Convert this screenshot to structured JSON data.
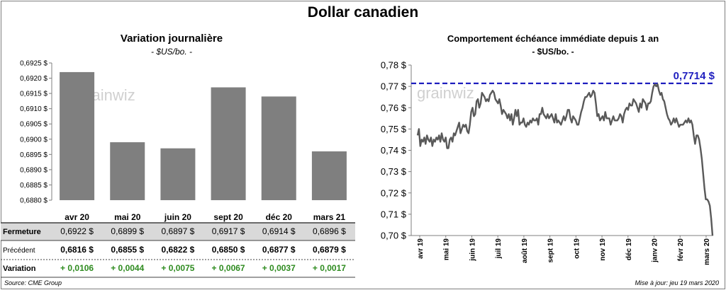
{
  "title": "Dollar canadien",
  "left": {
    "title": "Variation  journalière",
    "subtitle": "- $US/bo. -",
    "watermark": "grainwiz",
    "chart_data": {
      "type": "bar",
      "categories": [
        "avr 20",
        "mai 20",
        "juin 20",
        "sept 20",
        "déc 20",
        "mars 21"
      ],
      "values": [
        0.6922,
        0.6899,
        0.6897,
        0.6917,
        0.6914,
        0.6896
      ],
      "ylim": [
        0.688,
        0.6925
      ],
      "yticks": [
        "0,6880 $",
        "0,6885 $",
        "0,6890 $",
        "0,6895 $",
        "0,6900 $",
        "0,6905 $",
        "0,6910 $",
        "0,6915 $",
        "0,6920 $",
        "0,6925 $"
      ],
      "bar_color": "#7f7f7f",
      "grid": false
    },
    "table": {
      "rows": [
        {
          "label": "Fermeture",
          "cells": [
            "0,6922  $",
            "0,6899  $",
            "0,6897  $",
            "0,6917  $",
            "0,6914  $",
            "0,6896  $"
          ]
        },
        {
          "label": "Précédent",
          "cells": [
            "0,6816  $",
            "0,6855  $",
            "0,6822  $",
            "0,6850  $",
            "0,6877  $",
            "0,6879  $"
          ]
        },
        {
          "label": "Variation",
          "cells": [
            "+ 0,0106",
            "+ 0,0044",
            "+ 0,0075",
            "+ 0,0067",
            "+ 0,0037",
            "+ 0,0017"
          ]
        }
      ],
      "positive_color": "#2e8b1f",
      "highlight_color": "#d9d9d9"
    }
  },
  "right": {
    "title": "Comportement échéance immédiate depuis 1 an",
    "subtitle": "- $US/bo. -",
    "watermark": "grainwiz",
    "chart_data": {
      "type": "line",
      "ylim": [
        0.7,
        0.78
      ],
      "yticks": [
        "0,70 $",
        "0,71 $",
        "0,72 $",
        "0,73 $",
        "0,74 $",
        "0,75 $",
        "0,76 $",
        "0,77 $",
        "0,78 $"
      ],
      "x_labels": [
        "avr 19",
        "mai 19",
        "juin 19",
        "juil 19",
        "août 19",
        "sept 19",
        "oct 19",
        "nov 19",
        "déc 19",
        "janv 20",
        "févr 20",
        "mars 20"
      ],
      "reference": {
        "value": 0.7714,
        "label": "0,7714  $",
        "color": "#1f1fbf"
      },
      "line_color": "#595959",
      "grid": false,
      "series": [
        {
          "values": [
            0.747,
            0.75,
            0.742,
            0.745,
            0.744,
            0.746,
            0.743,
            0.747,
            0.745,
            0.744,
            0.746,
            0.742,
            0.745,
            0.744,
            0.746,
            0.745,
            0.747,
            0.744,
            0.748,
            0.745,
            0.744,
            0.746,
            0.741,
            0.741,
            0.745,
            0.746,
            0.744,
            0.748,
            0.747,
            0.749,
            0.751,
            0.753,
            0.748,
            0.75,
            0.752,
            0.751,
            0.752,
            0.749,
            0.748,
            0.752,
            0.758,
            0.76,
            0.756,
            0.757,
            0.763,
            0.764,
            0.76,
            0.762,
            0.767,
            0.766,
            0.765,
            0.763,
            0.764,
            0.763,
            0.766,
            0.767,
            0.768,
            0.767,
            0.764,
            0.763,
            0.762,
            0.764,
            0.761,
            0.757,
            0.759,
            0.758,
            0.757,
            0.755,
            0.757,
            0.754,
            0.757,
            0.752,
            0.755,
            0.759,
            0.756,
            0.759,
            0.752,
            0.753,
            0.753,
            0.755,
            0.752,
            0.751,
            0.753,
            0.752,
            0.754,
            0.753,
            0.755,
            0.754,
            0.754,
            0.755,
            0.752,
            0.757,
            0.757,
            0.76,
            0.757,
            0.756,
            0.755,
            0.757,
            0.755,
            0.756,
            0.757,
            0.755,
            0.753,
            0.757,
            0.753,
            0.754,
            0.753,
            0.752,
            0.754,
            0.756,
            0.754,
            0.756,
            0.759,
            0.759,
            0.755,
            0.753,
            0.756,
            0.755,
            0.754,
            0.752,
            0.752,
            0.755,
            0.758,
            0.76,
            0.763,
            0.765,
            0.765,
            0.766,
            0.767,
            0.765,
            0.766,
            0.768,
            0.767,
            0.762,
            0.756,
            0.757,
            0.754,
            0.755,
            0.756,
            0.754,
            0.758,
            0.755,
            0.755,
            0.755,
            0.752,
            0.754,
            0.756,
            0.754,
            0.754,
            0.754,
            0.755,
            0.757,
            0.756,
            0.753,
            0.757,
            0.759,
            0.76,
            0.759,
            0.762,
            0.761,
            0.761,
            0.764,
            0.763,
            0.762,
            0.76,
            0.758,
            0.762,
            0.76,
            0.764,
            0.763,
            0.762,
            0.759,
            0.762,
            0.762,
            0.763,
            0.767,
            0.77,
            0.771,
            0.77,
            0.771,
            0.768,
            0.766,
            0.767,
            0.764,
            0.763,
            0.76,
            0.757,
            0.755,
            0.754,
            0.752,
            0.753,
            0.755,
            0.753,
            0.755,
            0.753,
            0.751,
            0.752,
            0.752,
            0.752,
            0.753,
            0.754,
            0.753,
            0.755,
            0.753,
            0.754,
            0.752,
            0.747,
            0.743,
            0.747,
            0.747,
            0.745,
            0.741,
            0.736,
            0.729,
            0.722,
            0.717,
            0.717,
            0.716,
            0.714,
            0.708,
            0.7
          ]
        }
      ]
    }
  },
  "footer": {
    "source": "Source: CME Group",
    "updated": "Mise à jour: jeu 19 mars 2020"
  }
}
